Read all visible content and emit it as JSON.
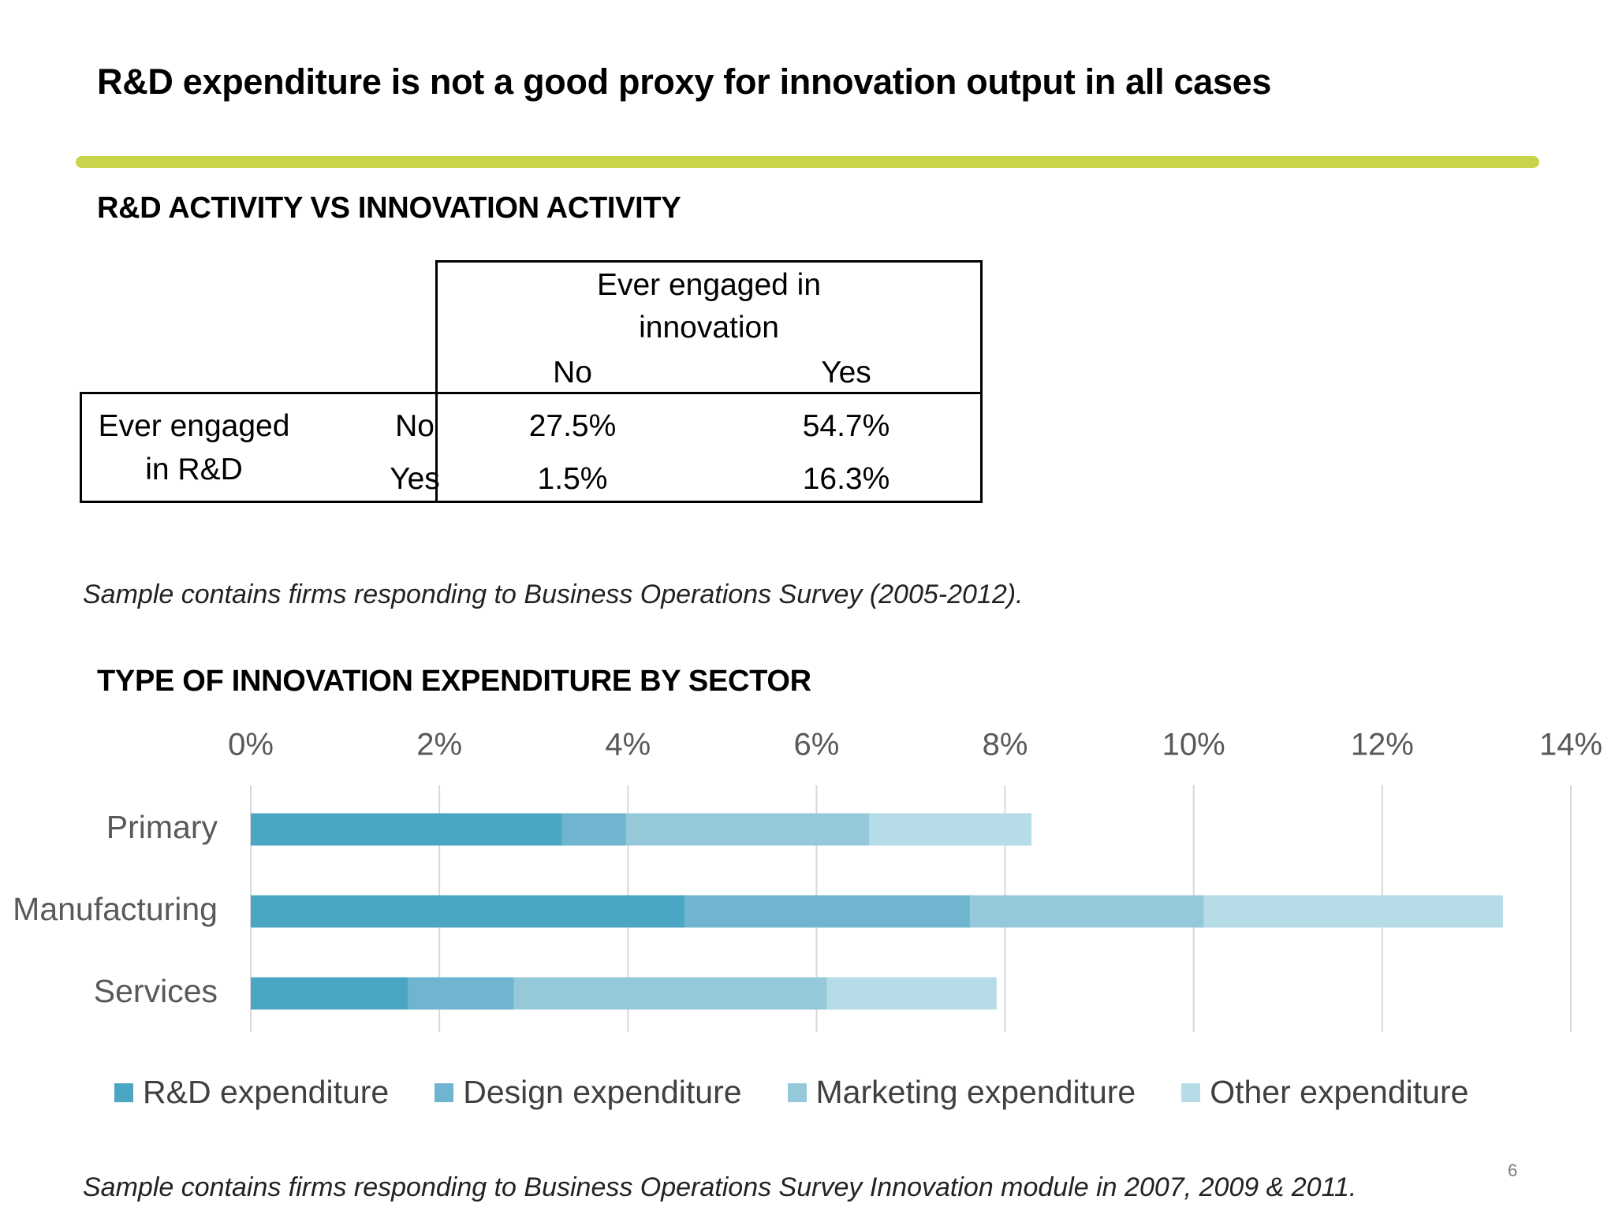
{
  "page": {
    "title": "R&D expenditure is not a good proxy for innovation output in all cases",
    "page_number": "6",
    "accent_color": "#c9d44a"
  },
  "table_section": {
    "heading": "R&D ACTIVITY VS INNOVATION ACTIVITY",
    "col_group_line1": "Ever engaged in",
    "col_group_line2": "innovation",
    "col_no": "No",
    "col_yes": "Yes",
    "row_group_line1": "Ever engaged",
    "row_group_line2": "in R&D",
    "row_no": "No",
    "row_yes": "Yes",
    "values": {
      "no_no": "27.5%",
      "no_yes": "54.7%",
      "yes_no": "1.5%",
      "yes_yes": "16.3%"
    },
    "note": "Sample contains firms responding to Business Operations Survey (2005-2012)."
  },
  "chart_section": {
    "heading": "TYPE OF INNOVATION EXPENDITURE BY SECTOR",
    "note": "Sample contains firms responding to Business Operations Survey Innovation module in 2007, 2009 & 2011."
  },
  "chart_data": {
    "type": "bar",
    "orientation": "horizontal",
    "stacked": true,
    "categories": [
      "Primary",
      "Manufacturing",
      "Services"
    ],
    "series": [
      {
        "name": "R&D expenditure",
        "color": "#4ba6c3",
        "values": [
          3.3,
          4.6,
          1.67
        ]
      },
      {
        "name": "Design expenditure",
        "color": "#6fb5cf",
        "values": [
          0.68,
          3.03,
          1.12
        ]
      },
      {
        "name": "Marketing expenditure",
        "color": "#95c9da",
        "values": [
          2.58,
          2.48,
          3.32
        ]
      },
      {
        "name": "Other expenditure",
        "color": "#b6dce8",
        "values": [
          1.72,
          3.17,
          1.8
        ]
      }
    ],
    "xlim": [
      0,
      14
    ],
    "xticks": [
      "0%",
      "2%",
      "4%",
      "6%",
      "8%",
      "10%",
      "12%",
      "14%"
    ],
    "x_axis_position": "top",
    "grid": true,
    "legend_position": "bottom"
  }
}
